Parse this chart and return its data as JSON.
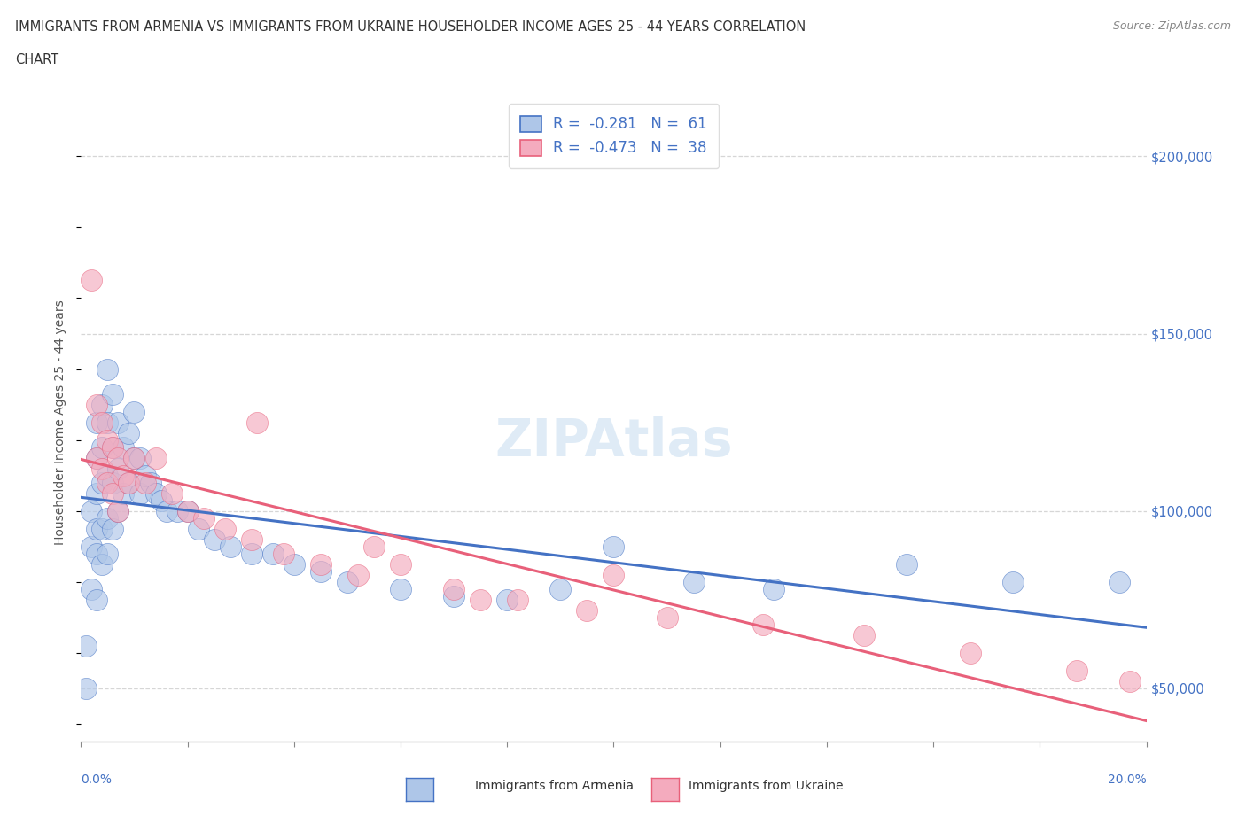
{
  "title_line1": "IMMIGRANTS FROM ARMENIA VS IMMIGRANTS FROM UKRAINE HOUSEHOLDER INCOME AGES 25 - 44 YEARS CORRELATION",
  "title_line2": "CHART",
  "source": "Source: ZipAtlas.com",
  "ylabel": "Householder Income Ages 25 - 44 years",
  "armenia_R": -0.281,
  "armenia_N": 61,
  "ukraine_R": -0.473,
  "ukraine_N": 38,
  "armenia_color": "#aec6e8",
  "ukraine_color": "#f4abbe",
  "armenia_line_color": "#4472c4",
  "ukraine_line_color": "#e8607a",
  "legend_armenia_label": "Immigrants from Armenia",
  "legend_ukraine_label": "Immigrants from Ukraine",
  "y_ticks": [
    50000,
    100000,
    150000,
    200000
  ],
  "y_tick_labels": [
    "$50,000",
    "$100,000",
    "$150,000",
    "$200,000"
  ],
  "xlim": [
    0.0,
    0.2
  ],
  "ylim": [
    35000,
    215000
  ],
  "watermark": "ZIPAtlas",
  "armenia_x": [
    0.001,
    0.001,
    0.002,
    0.002,
    0.002,
    0.003,
    0.003,
    0.003,
    0.003,
    0.003,
    0.003,
    0.004,
    0.004,
    0.004,
    0.004,
    0.004,
    0.005,
    0.005,
    0.005,
    0.005,
    0.005,
    0.006,
    0.006,
    0.006,
    0.006,
    0.007,
    0.007,
    0.007,
    0.008,
    0.008,
    0.009,
    0.009,
    0.01,
    0.01,
    0.011,
    0.011,
    0.012,
    0.013,
    0.014,
    0.015,
    0.016,
    0.018,
    0.02,
    0.022,
    0.025,
    0.028,
    0.032,
    0.036,
    0.04,
    0.045,
    0.05,
    0.06,
    0.07,
    0.08,
    0.09,
    0.1,
    0.115,
    0.13,
    0.155,
    0.175,
    0.195
  ],
  "armenia_y": [
    62000,
    50000,
    100000,
    90000,
    78000,
    125000,
    115000,
    105000,
    95000,
    88000,
    75000,
    130000,
    118000,
    108000,
    95000,
    85000,
    140000,
    125000,
    110000,
    98000,
    88000,
    133000,
    118000,
    108000,
    95000,
    125000,
    112000,
    100000,
    118000,
    105000,
    122000,
    108000,
    128000,
    115000,
    115000,
    105000,
    110000,
    108000,
    105000,
    103000,
    100000,
    100000,
    100000,
    95000,
    92000,
    90000,
    88000,
    88000,
    85000,
    83000,
    80000,
    78000,
    76000,
    75000,
    78000,
    90000,
    80000,
    78000,
    85000,
    80000,
    80000
  ],
  "ukraine_x": [
    0.002,
    0.003,
    0.003,
    0.004,
    0.004,
    0.005,
    0.005,
    0.006,
    0.006,
    0.007,
    0.007,
    0.008,
    0.009,
    0.01,
    0.012,
    0.014,
    0.017,
    0.02,
    0.023,
    0.027,
    0.032,
    0.038,
    0.045,
    0.052,
    0.06,
    0.07,
    0.082,
    0.095,
    0.11,
    0.128,
    0.147,
    0.167,
    0.187,
    0.197,
    0.033,
    0.055,
    0.075,
    0.1
  ],
  "ukraine_y": [
    165000,
    130000,
    115000,
    125000,
    112000,
    120000,
    108000,
    118000,
    105000,
    115000,
    100000,
    110000,
    108000,
    115000,
    108000,
    115000,
    105000,
    100000,
    98000,
    95000,
    92000,
    88000,
    85000,
    82000,
    85000,
    78000,
    75000,
    72000,
    70000,
    68000,
    65000,
    60000,
    55000,
    52000,
    125000,
    90000,
    75000,
    82000
  ]
}
